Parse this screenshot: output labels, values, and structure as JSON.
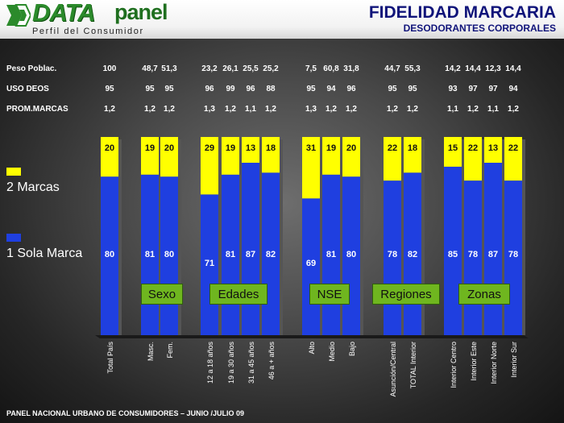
{
  "header": {
    "logo_text": "DATA",
    "logo_text2": "panel",
    "logo_sub": "Perfil del Consumidor",
    "title": "FIDELIDAD MARCARIA",
    "subtitle": "DESODORANTES CORPORALES"
  },
  "info_rows": [
    {
      "label": "Peso Poblac.",
      "values": [
        "100",
        "48,7",
        "51,3",
        "23,2",
        "26,1",
        "25,5",
        "25,2",
        "7,5",
        "60,8",
        "31,8",
        "44,7",
        "55,3",
        "14,2",
        "14,4",
        "12,3",
        "14,4"
      ]
    },
    {
      "label": "USO DEOS",
      "values": [
        "95",
        "95",
        "95",
        "96",
        "99",
        "96",
        "88",
        "95",
        "94",
        "96",
        "95",
        "95",
        "93",
        "97",
        "97",
        "94"
      ]
    },
    {
      "label": "PROM.MARCAS",
      "values": [
        "1,2",
        "1,2",
        "1,2",
        "1,3",
        "1,2",
        "1,1",
        "1,2",
        "1,3",
        "1,2",
        "1,2",
        "1,2",
        "1,2",
        "1,1",
        "1,2",
        "1,1",
        "1,2"
      ]
    }
  ],
  "legend": [
    {
      "label": "2 Marcas",
      "color": "#ffff00"
    },
    {
      "label": "1 Sola Marca",
      "color": "#1f3fe0"
    }
  ],
  "groups": [
    {
      "label": "Sexo",
      "bars": [
        1,
        2
      ]
    },
    {
      "label": "Edades",
      "bars": [
        3,
        6
      ]
    },
    {
      "label": "NSE",
      "bars": [
        7,
        9
      ]
    },
    {
      "label": "Regiones",
      "bars": [
        10,
        11
      ]
    },
    {
      "label": "Zonas",
      "bars": [
        12,
        15
      ]
    }
  ],
  "chart_data": {
    "type": "bar",
    "stacked": true,
    "normalized_percent": true,
    "categories": [
      "Total País",
      "Masc.",
      "Fem.",
      "12 a 18 años",
      "19 a 30 años",
      "31 a 45 años",
      "46 a + años",
      "Alto",
      "Medio",
      "Bajo",
      "Asunción/Central",
      "TOTAL Interior",
      "Interior Centro",
      "Interior Este",
      "Interior Norte",
      "Interior Sur"
    ],
    "series": [
      {
        "name": "1 Sola Marca",
        "color": "#1f3fe0",
        "values": [
          80,
          81,
          80,
          71,
          81,
          87,
          82,
          69,
          81,
          80,
          78,
          82,
          85,
          78,
          87,
          78
        ]
      },
      {
        "name": "2 Marcas",
        "color": "#ffff00",
        "values": [
          20,
          19,
          20,
          29,
          19,
          13,
          18,
          31,
          19,
          20,
          22,
          18,
          15,
          22,
          13,
          22
        ]
      }
    ],
    "ylim": [
      0,
      100
    ],
    "grid": false,
    "legend_position": "left"
  },
  "footer": "PANEL NACIONAL URBANO DE CONSUMIDORES – JUNIO /JULIO 09"
}
